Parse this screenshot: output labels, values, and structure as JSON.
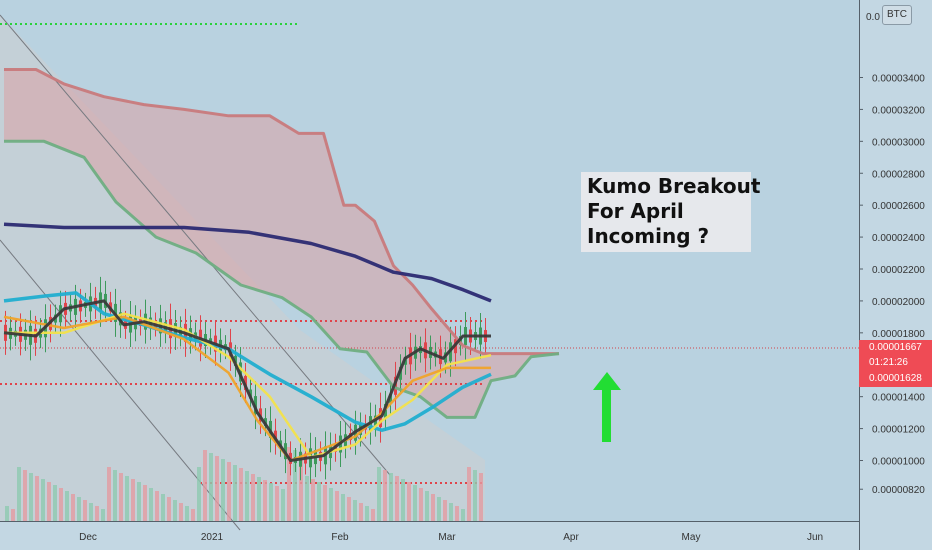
{
  "chart_data": {
    "type": "line",
    "title": "",
    "annotation": {
      "lines": [
        "Kumo Breakout",
        "For April",
        "Incoming ?"
      ]
    },
    "currency_badge": "BTC",
    "x_axis_labels": [
      "Dec",
      "2021",
      "Feb",
      "Mar",
      "Apr",
      "May",
      "Jun"
    ],
    "y_axis_labels": [
      "0.00003400",
      "0.00003200",
      "0.00003000",
      "0.00002800",
      "0.00002600",
      "0.00002400",
      "0.00002200",
      "0.00002000",
      "0.00001800",
      "0.00001400",
      "0.00001200",
      "0.00001000",
      "0.00000820"
    ],
    "ylim": [
      7.4e-06,
      3.64e-05
    ],
    "price_tags": {
      "last": "0.00001667",
      "countdown": "01:21:26",
      "low": "0.00001628"
    },
    "colors": {
      "background": "#b9d2e0",
      "kumo_bear_fill": "#dba0a4",
      "kumo_bull_fill": "#a4cfb4",
      "senkou_a": "#6fae82",
      "senkou_b": "#c87a7c",
      "ma_200": "#2b2a72",
      "ma_fast_cyan": "#21aed0",
      "ma_yellow": "#f3e24a",
      "ma_orange": "#f0a32a",
      "ma_black": "#3a3a3a",
      "up_candle": "#3d9a5c",
      "down_candle": "#e0444b",
      "arrow": "#22dd33"
    },
    "series": [
      {
        "color_key": "senkou_b",
        "x": [
          "2020-11-10",
          "2020-11-18",
          "2020-11-25",
          "2020-12-05",
          "2020-12-15",
          "2020-12-25",
          "2021-01-05",
          "2021-01-15",
          "2021-01-22",
          "2021-01-28",
          "2021-02-02",
          "2021-02-05",
          "2021-02-10",
          "2021-02-15",
          "2021-02-20",
          "2021-02-25",
          "2021-03-05",
          "2021-03-10",
          "2021-03-20",
          "2021-03-29"
        ],
        "y": [
          3.45e-05,
          3.45e-05,
          3.36e-05,
          3.28e-05,
          3.23e-05,
          3.2e-05,
          3.16e-05,
          3.16e-05,
          3.05e-05,
          3.05e-05,
          2.6e-05,
          2.6e-05,
          2.5e-05,
          2.22e-05,
          2.1e-05,
          1.95e-05,
          1.72e-05,
          1.67e-05,
          1.67e-05,
          1.67e-05
        ]
      },
      {
        "color_key": "senkou_a",
        "x": [
          "2020-11-10",
          "2020-11-20",
          "2020-11-30",
          "2020-12-08",
          "2020-12-18",
          "2020-12-28",
          "2021-01-08",
          "2021-01-18",
          "2021-01-25",
          "2021-02-01",
          "2021-02-08",
          "2021-02-15",
          "2021-02-22",
          "2021-03-01",
          "2021-03-08",
          "2021-03-12",
          "2021-03-18",
          "2021-03-22",
          "2021-03-29"
        ],
        "y": [
          3e-05,
          3e-05,
          2.9e-05,
          2.62e-05,
          2.4e-05,
          2.3e-05,
          2.1e-05,
          2.02e-05,
          1.9e-05,
          1.7e-05,
          1.68e-05,
          1.46e-05,
          1.4e-05,
          1.27e-05,
          1.27e-05,
          1.5e-05,
          1.53e-05,
          1.65e-05,
          1.67e-05
        ]
      },
      {
        "color_key": "ma_200",
        "x": [
          "2020-11-10",
          "2020-11-25",
          "2020-12-10",
          "2020-12-25",
          "2021-01-10",
          "2021-01-25",
          "2021-02-05",
          "2021-02-15",
          "2021-02-25",
          "2021-03-05",
          "2021-03-12"
        ],
        "y": [
          2.48e-05,
          2.46e-05,
          2.46e-05,
          2.46e-05,
          2.43e-05,
          2.36e-05,
          2.28e-05,
          2.18e-05,
          2.14e-05,
          2.07e-05,
          2e-05
        ]
      },
      {
        "color_key": "ma_fast_cyan",
        "x": [
          "2020-11-10",
          "2020-11-20",
          "2020-11-28",
          "2020-12-05",
          "2020-12-15",
          "2020-12-25",
          "2021-01-05",
          "2021-01-15",
          "2021-01-25",
          "2021-02-05",
          "2021-02-12",
          "2021-02-18",
          "2021-02-25",
          "2021-03-05",
          "2021-03-12"
        ],
        "y": [
          2e-05,
          2.03e-05,
          2.05e-05,
          1.92e-05,
          1.85e-05,
          1.77e-05,
          1.7e-05,
          1.54e-05,
          1.4e-05,
          1.24e-05,
          1.19e-05,
          1.23e-05,
          1.33e-05,
          1.46e-05,
          1.54e-05
        ]
      },
      {
        "color_key": "ma_yellow",
        "x": [
          "2020-11-10",
          "2020-11-25",
          "2020-12-10",
          "2020-12-25",
          "2021-01-05",
          "2021-01-15",
          "2021-01-25",
          "2021-02-05",
          "2021-02-12",
          "2021-02-20",
          "2021-03-01",
          "2021-03-12"
        ],
        "y": [
          1.8e-05,
          1.8e-05,
          1.92e-05,
          1.82e-05,
          1.65e-05,
          1.4e-05,
          1.02e-05,
          1.1e-05,
          1.25e-05,
          1.38e-05,
          1.6e-05,
          1.66e-05
        ]
      },
      {
        "color_key": "ma_orange",
        "x": [
          "2020-11-10",
          "2020-11-25",
          "2020-12-10",
          "2020-12-25",
          "2021-01-05",
          "2021-01-12",
          "2021-01-20",
          "2021-02-05",
          "2021-02-12",
          "2021-02-20",
          "2021-03-01",
          "2021-03-12"
        ],
        "y": [
          1.9e-05,
          1.83e-05,
          1.9e-05,
          1.76e-05,
          1.55e-05,
          1.25e-05,
          1e-05,
          1.15e-05,
          1.3e-05,
          1.5e-05,
          1.58e-05,
          1.58e-05
        ]
      },
      {
        "color_key": "ma_black",
        "x": [
          "2020-11-10",
          "2020-11-18",
          "2020-11-25",
          "2020-12-05",
          "2020-12-10",
          "2020-12-15",
          "2020-12-25",
          "2021-01-05",
          "2021-01-12",
          "2021-01-20",
          "2021-01-28",
          "2021-02-05",
          "2021-02-12",
          "2021-02-18",
          "2021-02-22",
          "2021-02-28",
          "2021-03-05",
          "2021-03-12"
        ],
        "y": [
          1.8e-05,
          1.78e-05,
          1.95e-05,
          2e-05,
          1.85e-05,
          1.87e-05,
          1.8e-05,
          1.7e-05,
          1.3e-05,
          1e-05,
          1.03e-05,
          1.18e-05,
          1.28e-05,
          1.64e-05,
          1.7e-05,
          1.64e-05,
          1.78e-05,
          1.78e-05
        ]
      }
    ]
  }
}
